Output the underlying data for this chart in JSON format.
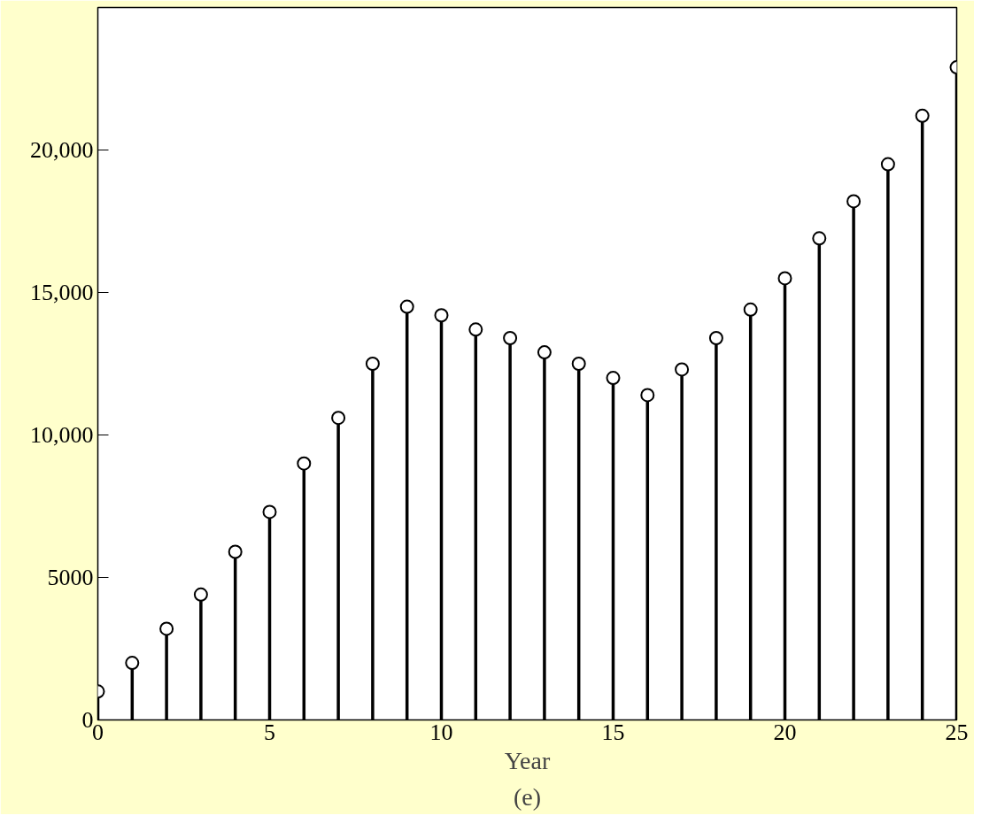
{
  "chart_data": {
    "type": "lollipop",
    "xlabel": "Year",
    "annotations": [
      "(e)"
    ],
    "x": [
      0,
      1,
      2,
      3,
      4,
      5,
      6,
      7,
      8,
      9,
      10,
      11,
      12,
      13,
      14,
      15,
      16,
      17,
      18,
      19,
      20,
      21,
      22,
      23,
      24,
      25
    ],
    "values": [
      1000,
      2000,
      3200,
      4400,
      5900,
      7300,
      9000,
      10600,
      12500,
      14500,
      14200,
      13700,
      13400,
      12900,
      12500,
      12000,
      11400,
      12300,
      13400,
      14400,
      15500,
      16900,
      18200,
      19500,
      21200,
      22900
    ],
    "color": "#000000",
    "marker": "circle",
    "grid": false,
    "xlim": [
      0,
      25
    ],
    "xticks": [
      0,
      5,
      10,
      15,
      20,
      25
    ],
    "ylim": [
      0,
      25000
    ],
    "yticks": [
      0,
      {
        "value": 5000,
        "label": "5000"
      },
      {
        "value": 10000,
        "label": "10,000"
      },
      {
        "value": 15000,
        "label": "15,000"
      },
      {
        "value": 20000,
        "label": "20,000"
      }
    ]
  }
}
